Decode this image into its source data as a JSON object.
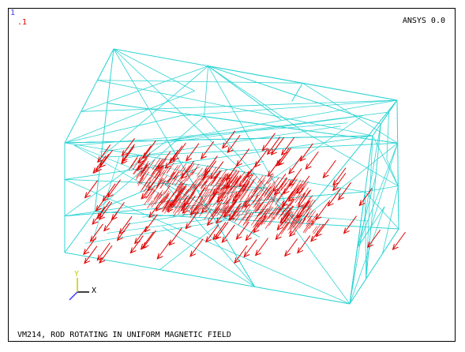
{
  "window": {
    "number": "1",
    "load_step_label": ".1",
    "product_label": "ANSYS 0.0",
    "title": "VM214, ROD ROTATING IN UNIFORM MAGNETIC FIELD"
  },
  "triad": {
    "x_label": "X",
    "y_label": "Y"
  },
  "colors": {
    "background": "#ffffff",
    "mesh": "#2fd4d4",
    "vectors": "#e00000",
    "frame": "#000000",
    "triad_x": "#000000",
    "triad_y": "#c8c800",
    "triad_z": "#3a3aff"
  }
}
